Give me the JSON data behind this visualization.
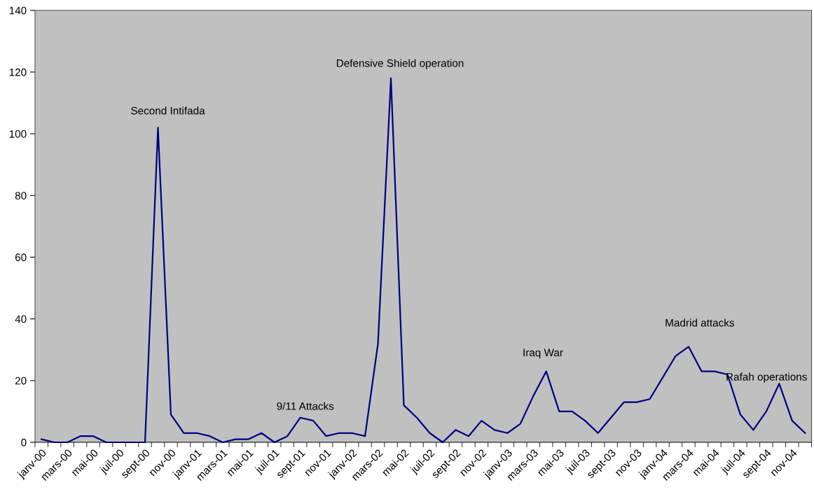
{
  "chart_data": {
    "type": "line",
    "categories": [
      "janv-00",
      null,
      "mars-00",
      null,
      "mai-00",
      null,
      "juil-00",
      null,
      "sept-00",
      null,
      "nov-00",
      null,
      "janv-01",
      null,
      "mars-01",
      null,
      "mai-01",
      null,
      "juil-01",
      null,
      "sept-01",
      null,
      "nov-01",
      null,
      "janv-02",
      null,
      "mars-02",
      null,
      "mai-02",
      null,
      "juil-02",
      null,
      "sept-02",
      null,
      "nov-02",
      null,
      "janv-03",
      null,
      "mars-03",
      null,
      "mai-03",
      null,
      "juil-03",
      null,
      "sept-03",
      null,
      "nov-03",
      null,
      "janv-04",
      null,
      "mars-04",
      null,
      "mai-04",
      null,
      "juil-04",
      null,
      "sept-04",
      null,
      "nov-04",
      null
    ],
    "series": [
      {
        "color": "#000080",
        "values": [
          1,
          0,
          0,
          2,
          2,
          0,
          0,
          0,
          0,
          102,
          9,
          3,
          3,
          2,
          0,
          1,
          1,
          3,
          0,
          2,
          8,
          7,
          2,
          3,
          3,
          2,
          32,
          118,
          12,
          8,
          3,
          0,
          4,
          2,
          7,
          4,
          3,
          6,
          15,
          23,
          10,
          10,
          7,
          3,
          8,
          13,
          13,
          14,
          21,
          28,
          31,
          23,
          23,
          22,
          9,
          4,
          10,
          19,
          7,
          3
        ]
      }
    ],
    "ylim": [
      0,
      140
    ],
    "yticks": [
      0,
      20,
      40,
      60,
      80,
      100,
      120,
      140
    ],
    "grid": false,
    "marker": "none",
    "line_style": "solid",
    "annotations": [
      "Second Intifada",
      "9/11 Attacks",
      "Defensive Shield operation",
      "Iraq War",
      "Madrid attacks",
      "Rafah operations"
    ]
  }
}
